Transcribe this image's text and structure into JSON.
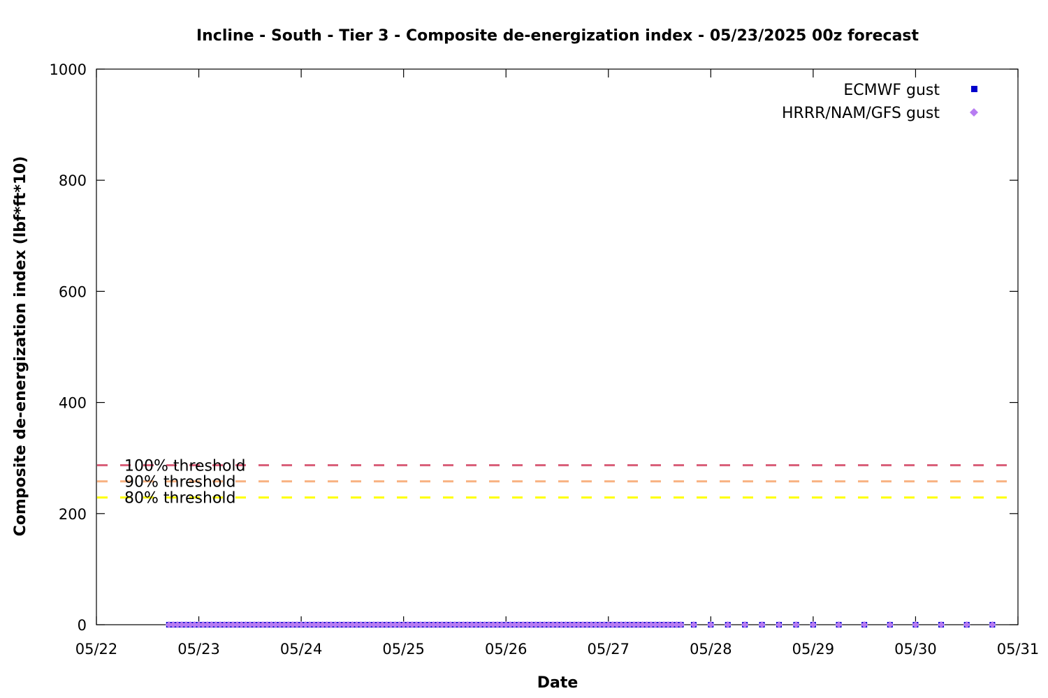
{
  "chart_data": {
    "type": "scatter",
    "title": "Incline - South - Tier 3 - Composite de-energization index - 05/23/2025 00z forecast",
    "xlabel": "Date",
    "ylabel": "Composite de-energization index (lbf*ft*10)",
    "x_tick_labels": [
      "05/22",
      "05/23",
      "05/24",
      "05/25",
      "05/26",
      "05/27",
      "05/28",
      "05/29",
      "05/30",
      "05/31"
    ],
    "xlim": [
      "2025-05-22T00:00",
      "2025-05-31T00:00"
    ],
    "ylim": [
      0,
      1000
    ],
    "y_ticks": [
      0,
      200,
      400,
      600,
      800,
      1000
    ],
    "legend_position": "top-right",
    "grid": false,
    "series": [
      {
        "name": "ECMWF gust",
        "marker": "square",
        "color": "#0000cc",
        "hourly_start": "2025-05-22T17:00",
        "hourly_end": "2025-05-27T17:00",
        "hourly_value": 0,
        "points": [
          {
            "x": "2025-05-27T20:00",
            "y": 0
          },
          {
            "x": "2025-05-28T00:00",
            "y": 0
          },
          {
            "x": "2025-05-28T04:00",
            "y": 0
          },
          {
            "x": "2025-05-28T08:00",
            "y": 0
          },
          {
            "x": "2025-05-28T12:00",
            "y": 0
          },
          {
            "x": "2025-05-28T16:00",
            "y": 0
          },
          {
            "x": "2025-05-28T20:00",
            "y": 0
          },
          {
            "x": "2025-05-29T00:00",
            "y": 0
          },
          {
            "x": "2025-05-29T06:00",
            "y": 0
          },
          {
            "x": "2025-05-29T12:00",
            "y": 0
          },
          {
            "x": "2025-05-29T18:00",
            "y": 0
          },
          {
            "x": "2025-05-30T00:00",
            "y": 0
          },
          {
            "x": "2025-05-30T06:00",
            "y": 0
          },
          {
            "x": "2025-05-30T12:00",
            "y": 0
          },
          {
            "x": "2025-05-30T18:00",
            "y": 0
          }
        ]
      },
      {
        "name": "HRRR/NAM/GFS gust",
        "marker": "diamond",
        "color": "#b77cf2",
        "hourly_start": "2025-05-22T17:00",
        "hourly_end": "2025-05-27T17:00",
        "hourly_value": 0,
        "points": [
          {
            "x": "2025-05-27T20:00",
            "y": 0
          },
          {
            "x": "2025-05-28T00:00",
            "y": 0
          },
          {
            "x": "2025-05-28T04:00",
            "y": 0
          },
          {
            "x": "2025-05-28T08:00",
            "y": 0
          },
          {
            "x": "2025-05-28T12:00",
            "y": 0
          },
          {
            "x": "2025-05-28T16:00",
            "y": 0
          },
          {
            "x": "2025-05-28T20:00",
            "y": 0
          },
          {
            "x": "2025-05-29T00:00",
            "y": 0
          },
          {
            "x": "2025-05-29T06:00",
            "y": 0
          },
          {
            "x": "2025-05-29T12:00",
            "y": 0
          },
          {
            "x": "2025-05-29T18:00",
            "y": 0
          },
          {
            "x": "2025-05-30T00:00",
            "y": 0
          },
          {
            "x": "2025-05-30T06:00",
            "y": 0
          },
          {
            "x": "2025-05-30T12:00",
            "y": 0
          },
          {
            "x": "2025-05-30T18:00",
            "y": 0
          }
        ]
      }
    ],
    "thresholds": [
      {
        "label": "100% threshold",
        "value": 287,
        "color": "#d9607a"
      },
      {
        "label": "90% threshold",
        "value": 258,
        "color": "#f8b282"
      },
      {
        "label": "80% threshold",
        "value": 229,
        "color": "#ffff00"
      }
    ]
  }
}
